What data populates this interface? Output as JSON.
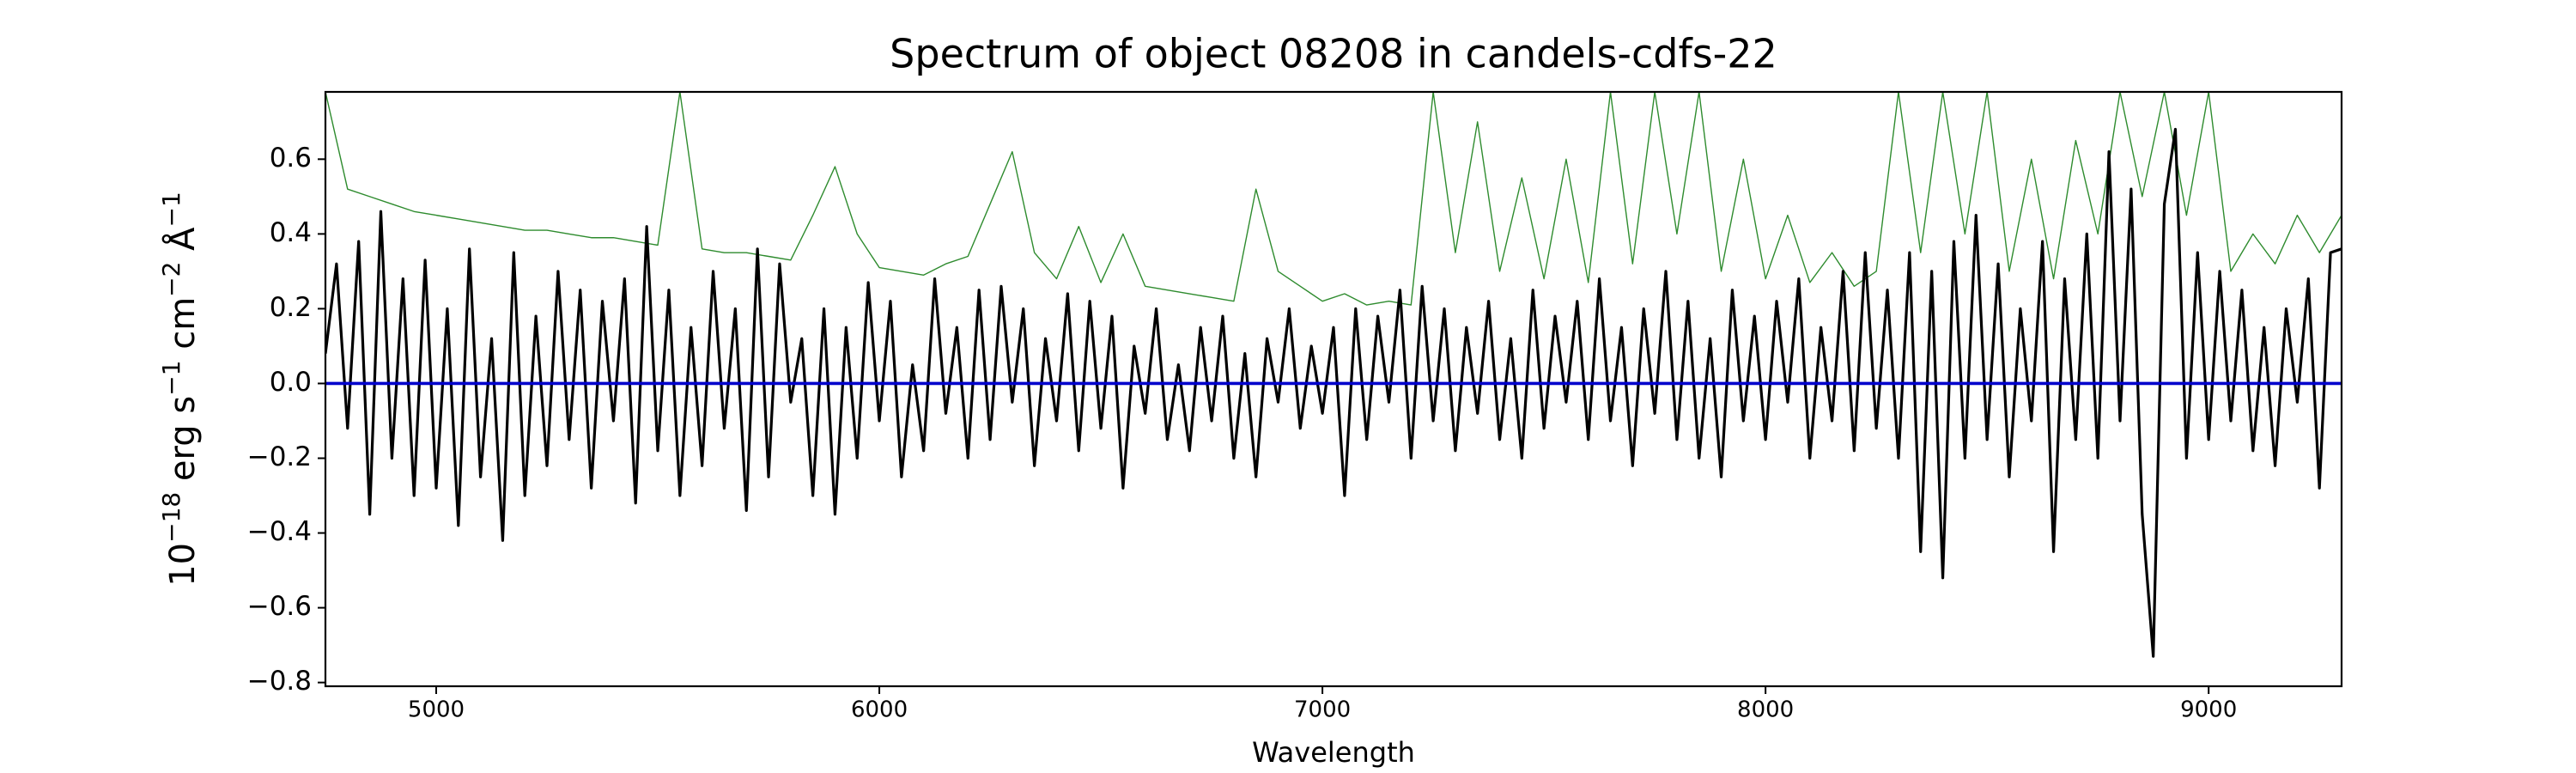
{
  "chart_data": {
    "type": "line",
    "title": "Spectrum of object 08208 in candels-cdfs-22",
    "xlabel": "Wavelength",
    "ylabel_parts": [
      {
        "text": "10"
      },
      {
        "text": "−18",
        "sup": true
      },
      {
        "text": " erg s"
      },
      {
        "text": "−1",
        "sup": true
      },
      {
        "text": " cm"
      },
      {
        "text": "−2",
        "sup": true
      },
      {
        "text": " Å"
      },
      {
        "text": "−1",
        "sup": true
      }
    ],
    "xlim": [
      4750,
      9300
    ],
    "ylim": [
      -0.81,
      0.78
    ],
    "xticks": [
      5000,
      6000,
      7000,
      8000,
      9000
    ],
    "yticks": [
      {
        "value": -0.8,
        "label": "−0.8"
      },
      {
        "value": -0.6,
        "label": "−0.6"
      },
      {
        "value": -0.4,
        "label": "−0.4"
      },
      {
        "value": -0.2,
        "label": "−0.2"
      },
      {
        "value": 0,
        "label": "0.0"
      },
      0.2,
      0.4,
      0.6
    ],
    "series": [
      {
        "color": "#2e8b2e",
        "width": 1.4,
        "x": [
          4750,
          4800,
          4850,
          4900,
          4950,
          5000,
          5050,
          5100,
          5150,
          5200,
          5250,
          5300,
          5350,
          5400,
          5450,
          5500,
          5550,
          5600,
          5650,
          5700,
          5750,
          5800,
          5850,
          5900,
          5950,
          6000,
          6050,
          6100,
          6150,
          6200,
          6250,
          6300,
          6350,
          6400,
          6450,
          6500,
          6550,
          6600,
          6650,
          6700,
          6750,
          6800,
          6850,
          6900,
          6950,
          7000,
          7050,
          7100,
          7150,
          7200,
          7250,
          7300,
          7350,
          7400,
          7450,
          7500,
          7550,
          7600,
          7650,
          7700,
          7750,
          7800,
          7850,
          7900,
          7950,
          8000,
          8050,
          8100,
          8150,
          8200,
          8250,
          8300,
          8350,
          8400,
          8450,
          8500,
          8550,
          8600,
          8650,
          8700,
          8750,
          8800,
          8850,
          8900,
          8950,
          9000,
          9050,
          9100,
          9150,
          9200,
          9250,
          9300
        ],
        "values": [
          0.78,
          0.52,
          0.5,
          0.48,
          0.46,
          0.45,
          0.44,
          0.43,
          0.42,
          0.41,
          0.41,
          0.4,
          0.39,
          0.39,
          0.38,
          0.37,
          0.78,
          0.36,
          0.35,
          0.35,
          0.34,
          0.33,
          0.45,
          0.58,
          0.4,
          0.31,
          0.3,
          0.29,
          0.32,
          0.34,
          0.48,
          0.62,
          0.35,
          0.28,
          0.42,
          0.27,
          0.4,
          0.26,
          0.25,
          0.24,
          0.23,
          0.22,
          0.52,
          0.3,
          0.26,
          0.22,
          0.24,
          0.21,
          0.22,
          0.21,
          0.78,
          0.35,
          0.7,
          0.3,
          0.55,
          0.28,
          0.6,
          0.27,
          0.78,
          0.32,
          0.78,
          0.4,
          0.78,
          0.3,
          0.6,
          0.28,
          0.45,
          0.27,
          0.35,
          0.26,
          0.3,
          0.78,
          0.35,
          0.78,
          0.4,
          0.78,
          0.3,
          0.6,
          0.28,
          0.65,
          0.4,
          0.78,
          0.5,
          0.78,
          0.45,
          0.78,
          0.3,
          0.4,
          0.32,
          0.45,
          0.35,
          0.45
        ]
      },
      {
        "color": "#000000",
        "width": 3.2,
        "x": [
          4750,
          4775,
          4800,
          4825,
          4850,
          4875,
          4900,
          4925,
          4950,
          4975,
          5000,
          5025,
          5050,
          5075,
          5100,
          5125,
          5150,
          5175,
          5200,
          5225,
          5250,
          5275,
          5300,
          5325,
          5350,
          5375,
          5400,
          5425,
          5450,
          5475,
          5500,
          5525,
          5550,
          5575,
          5600,
          5625,
          5650,
          5675,
          5700,
          5725,
          5750,
          5775,
          5800,
          5825,
          5850,
          5875,
          5900,
          5925,
          5950,
          5975,
          6000,
          6025,
          6050,
          6075,
          6100,
          6125,
          6150,
          6175,
          6200,
          6225,
          6250,
          6275,
          6300,
          6325,
          6350,
          6375,
          6400,
          6425,
          6450,
          6475,
          6500,
          6525,
          6550,
          6575,
          6600,
          6625,
          6650,
          6675,
          6700,
          6725,
          6750,
          6775,
          6800,
          6825,
          6850,
          6875,
          6900,
          6925,
          6950,
          6975,
          7000,
          7025,
          7050,
          7075,
          7100,
          7125,
          7150,
          7175,
          7200,
          7225,
          7250,
          7275,
          7300,
          7325,
          7350,
          7375,
          7400,
          7425,
          7450,
          7475,
          7500,
          7525,
          7550,
          7575,
          7600,
          7625,
          7650,
          7675,
          7700,
          7725,
          7750,
          7775,
          7800,
          7825,
          7850,
          7875,
          7900,
          7925,
          7950,
          7975,
          8000,
          8025,
          8050,
          8075,
          8100,
          8125,
          8150,
          8175,
          8200,
          8225,
          8250,
          8275,
          8300,
          8325,
          8350,
          8375,
          8400,
          8425,
          8450,
          8475,
          8500,
          8525,
          8550,
          8575,
          8600,
          8625,
          8650,
          8675,
          8700,
          8725,
          8750,
          8775,
          8800,
          8825,
          8850,
          8875,
          8900,
          8925,
          8950,
          8975,
          9000,
          9025,
          9050,
          9075,
          9100,
          9125,
          9150,
          9175,
          9200,
          9225,
          9250,
          9275,
          9300
        ],
        "values": [
          0.08,
          0.32,
          -0.12,
          0.38,
          -0.35,
          0.46,
          -0.2,
          0.28,
          -0.3,
          0.33,
          -0.28,
          0.2,
          -0.38,
          0.36,
          -0.25,
          0.12,
          -0.42,
          0.35,
          -0.3,
          0.18,
          -0.22,
          0.3,
          -0.15,
          0.25,
          -0.28,
          0.22,
          -0.1,
          0.28,
          -0.32,
          0.42,
          -0.18,
          0.25,
          -0.3,
          0.15,
          -0.22,
          0.3,
          -0.12,
          0.2,
          -0.34,
          0.36,
          -0.25,
          0.32,
          -0.05,
          0.12,
          -0.3,
          0.2,
          -0.35,
          0.15,
          -0.2,
          0.27,
          -0.1,
          0.22,
          -0.25,
          0.05,
          -0.18,
          0.28,
          -0.08,
          0.15,
          -0.2,
          0.25,
          -0.15,
          0.26,
          -0.05,
          0.2,
          -0.22,
          0.12,
          -0.1,
          0.24,
          -0.18,
          0.22,
          -0.12,
          0.18,
          -0.28,
          0.1,
          -0.08,
          0.2,
          -0.15,
          0.05,
          -0.18,
          0.15,
          -0.1,
          0.18,
          -0.2,
          0.08,
          -0.25,
          0.12,
          -0.05,
          0.2,
          -0.12,
          0.1,
          -0.08,
          0.15,
          -0.3,
          0.2,
          -0.15,
          0.18,
          -0.05,
          0.25,
          -0.2,
          0.26,
          -0.1,
          0.2,
          -0.18,
          0.15,
          -0.08,
          0.22,
          -0.15,
          0.12,
          -0.2,
          0.25,
          -0.12,
          0.18,
          -0.05,
          0.22,
          -0.15,
          0.28,
          -0.1,
          0.15,
          -0.22,
          0.2,
          -0.08,
          0.3,
          -0.15,
          0.22,
          -0.2,
          0.12,
          -0.25,
          0.25,
          -0.1,
          0.18,
          -0.15,
          0.22,
          -0.05,
          0.28,
          -0.2,
          0.15,
          -0.1,
          0.3,
          -0.18,
          0.35,
          -0.12,
          0.25,
          -0.2,
          0.35,
          -0.45,
          0.3,
          -0.52,
          0.38,
          -0.2,
          0.45,
          -0.15,
          0.32,
          -0.25,
          0.2,
          -0.1,
          0.38,
          -0.45,
          0.28,
          -0.15,
          0.4,
          -0.2,
          0.62,
          -0.1,
          0.52,
          -0.35,
          -0.73,
          0.48,
          0.68,
          -0.2,
          0.35,
          -0.15,
          0.3,
          -0.1,
          0.25,
          -0.18,
          0.15,
          -0.22,
          0.2,
          -0.05,
          0.28,
          -0.28,
          0.35,
          0.36
        ]
      },
      {
        "color": "#0000cc",
        "width": 3.6,
        "x": [
          4750,
          9300
        ],
        "values": [
          0,
          0
        ]
      }
    ]
  }
}
